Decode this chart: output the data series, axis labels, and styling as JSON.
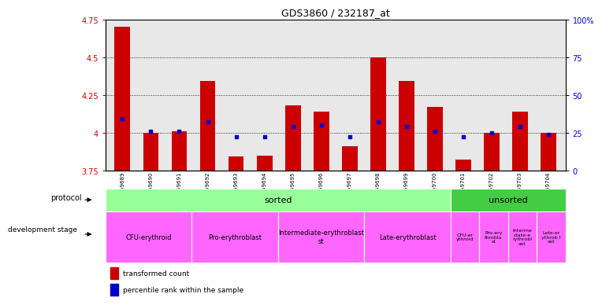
{
  "title": "GDS3860 / 232187_at",
  "samples": [
    "GSM559689",
    "GSM559690",
    "GSM559691",
    "GSM559692",
    "GSM559693",
    "GSM559694",
    "GSM559695",
    "GSM559696",
    "GSM559697",
    "GSM559698",
    "GSM559699",
    "GSM559700",
    "GSM559701",
    "GSM559702",
    "GSM559703",
    "GSM559704"
  ],
  "bar_values": [
    4.7,
    4.0,
    4.01,
    4.34,
    3.84,
    3.85,
    4.18,
    4.14,
    3.91,
    4.5,
    4.34,
    4.17,
    3.82,
    4.0,
    4.14,
    4.0
  ],
  "percentile_values": [
    4.09,
    4.01,
    4.01,
    4.07,
    3.97,
    3.97,
    4.04,
    4.05,
    3.97,
    4.07,
    4.04,
    4.01,
    3.97,
    4.0,
    4.04,
    3.99
  ],
  "ymin": 3.75,
  "ymax": 4.75,
  "bar_color": "#cc0000",
  "percentile_color": "#0000cc",
  "tick_color_left": "#cc0000",
  "tick_color_right": "#0000cc",
  "sorted_color": "#99ff99",
  "unsorted_color": "#44cc44",
  "stage_color": "#ff66ff",
  "right_yticks": [
    0,
    25,
    50,
    75,
    100
  ],
  "right_yticklabels": [
    "0",
    "25",
    "50",
    "75",
    "100%"
  ],
  "left_yticks": [
    3.75,
    4.0,
    4.25,
    4.5,
    4.75
  ],
  "left_yticklabels": [
    "3.75",
    "4",
    "4.25",
    "4.5",
    "4.75"
  ],
  "n_sorted": 12,
  "n_total": 16,
  "stage_sorted": [
    {
      "label": "CFU-erythroid",
      "start": 0,
      "end": 3
    },
    {
      "label": "Pro-erythroblast",
      "start": 3,
      "end": 6
    },
    {
      "label": "Intermediate-erythroblast\nst",
      "start": 6,
      "end": 9
    },
    {
      "label": "Late-erythroblast",
      "start": 9,
      "end": 12
    }
  ],
  "stage_unsorted": [
    {
      "label": "CFU-er\nythroid",
      "start": 12,
      "end": 13
    },
    {
      "label": "Pro-ery\nthrobla\nst",
      "start": 13,
      "end": 14
    },
    {
      "label": "Interme\ndiate-e\nrythrobl\nast",
      "start": 14,
      "end": 15
    },
    {
      "label": "Late-er\nythrob l\nast",
      "start": 15,
      "end": 16
    }
  ]
}
